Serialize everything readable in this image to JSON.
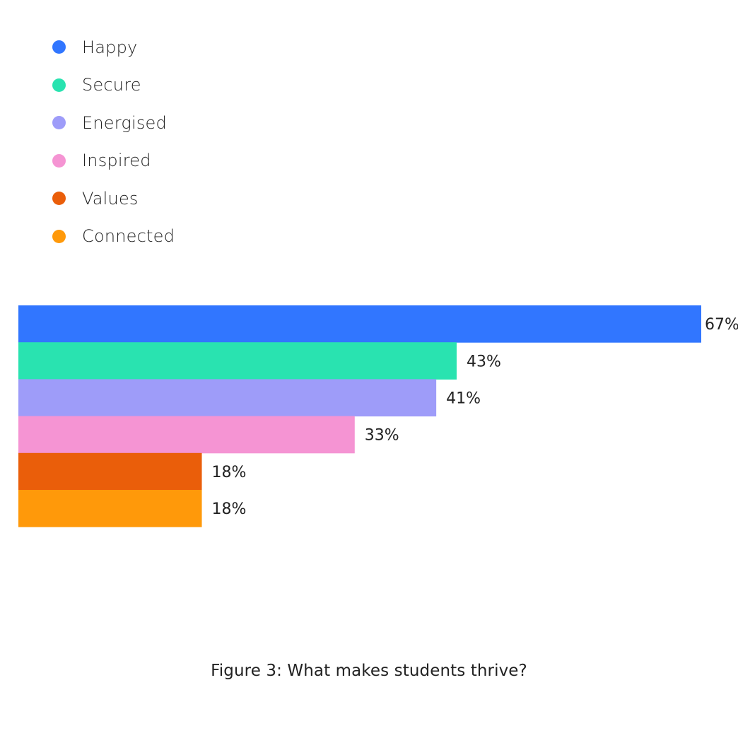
{
  "caption": "Figure 3: What makes students thrive?",
  "chart_data": {
    "type": "bar",
    "orientation": "horizontal",
    "categories": [
      "Happy",
      "Secure",
      "Energised",
      "Inspired",
      "Values",
      "Connected"
    ],
    "values": [
      67,
      43,
      41,
      33,
      18,
      18
    ],
    "value_labels": [
      "67%",
      "43%",
      "41%",
      "33%",
      "18%",
      "18%"
    ],
    "colors": [
      "#3176FF",
      "#29E3B0",
      "#9E9CF9",
      "#F594D3",
      "#EA5E0A",
      "#FF990A"
    ],
    "unit": "%",
    "xlim": [
      0,
      67
    ],
    "grid": false,
    "legend_position": "top-left",
    "title": "",
    "xlabel": "",
    "ylabel": ""
  }
}
